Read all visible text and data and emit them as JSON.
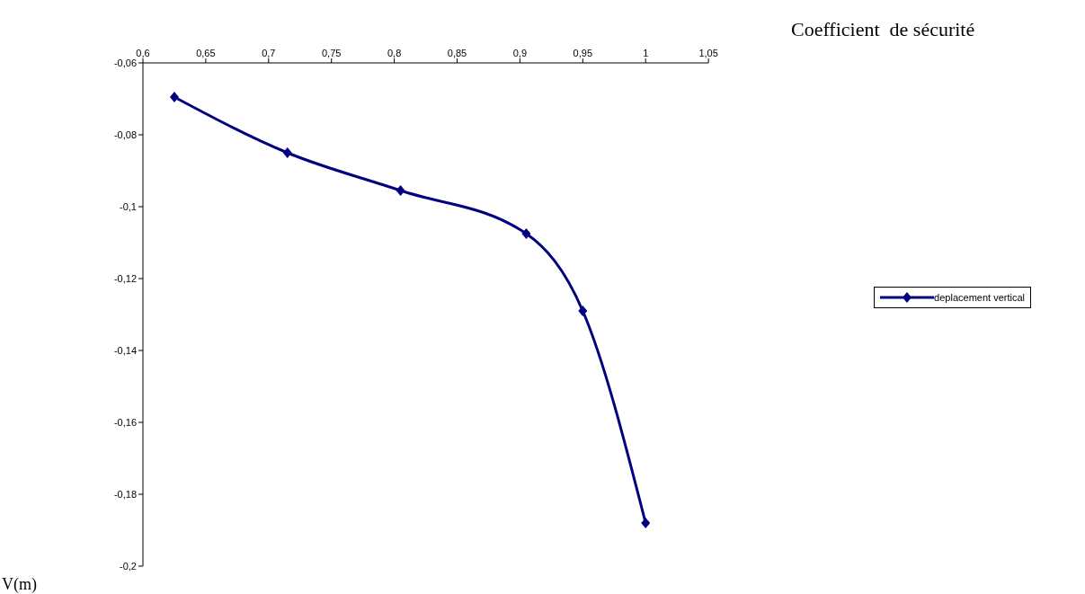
{
  "chart_data": {
    "type": "line",
    "xlabel": "Coefficient  de sécurité",
    "ylabel": "V(m)",
    "x": [
      0.625,
      0.715,
      0.805,
      0.905,
      0.95,
      1.0
    ],
    "series": [
      {
        "name": "deplacement vertical",
        "color": "#000080",
        "values": [
          -0.0695,
          -0.085,
          -0.0955,
          -0.1075,
          -0.129,
          -0.188
        ]
      }
    ],
    "xlim": [
      0.6,
      1.05
    ],
    "xticks": [
      {
        "value": 0.6,
        "label": "0,6"
      },
      {
        "value": 0.65,
        "label": "0,65"
      },
      {
        "value": 0.7,
        "label": "0,7"
      },
      {
        "value": 0.75,
        "label": "0,75"
      },
      {
        "value": 0.8,
        "label": "0,8"
      },
      {
        "value": 0.85,
        "label": "0,85"
      },
      {
        "value": 0.9,
        "label": "0,9"
      },
      {
        "value": 0.95,
        "label": "0,95"
      },
      {
        "value": 1,
        "label": "1"
      },
      {
        "value": 1.05,
        "label": "1,05"
      }
    ],
    "ylim": [
      -0.2,
      -0.06
    ],
    "yticks": [
      {
        "value": -0.2,
        "label": "-0,2"
      },
      {
        "value": -0.18,
        "label": "-0,18"
      },
      {
        "value": -0.16,
        "label": "-0,16"
      },
      {
        "value": -0.14,
        "label": "-0,14"
      },
      {
        "value": -0.12,
        "label": "-0,12"
      },
      {
        "value": -0.1,
        "label": "-0,1"
      },
      {
        "value": -0.08,
        "label": "-0,08"
      },
      {
        "value": -0.06,
        "label": "-0,06"
      }
    ],
    "grid": false,
    "legend": "right",
    "marker": "diamond",
    "line_style": "solid"
  }
}
